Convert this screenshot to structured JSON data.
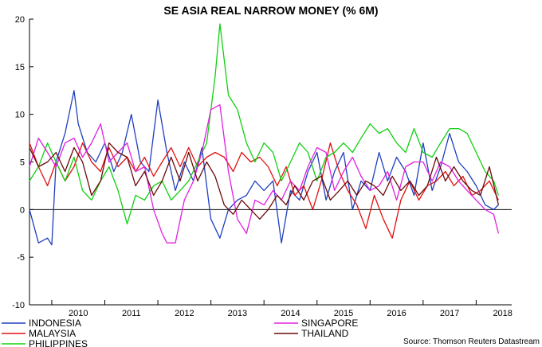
{
  "chart_data": {
    "type": "line",
    "title": "SE ASIA REAL NARROW MONEY (% 6M)",
    "source": "Source: Thomson Reuters Datastream",
    "ylim": [
      -10,
      20
    ],
    "yticks": [
      -10,
      -5,
      0,
      5,
      10,
      15,
      20
    ],
    "x_range": [
      2009.58,
      2018.67
    ],
    "xticks": [
      "2010",
      "2011",
      "2012",
      "2013",
      "2014",
      "2015",
      "2016",
      "2017",
      "2018"
    ],
    "zero_line": true,
    "grid": false,
    "legend": "bottom",
    "series": [
      {
        "name": "INDONESIA",
        "color": "#1f3fbf",
        "x": [
          2009.58,
          2009.75,
          2009.92,
          2010.0,
          2010.08,
          2010.25,
          2010.42,
          2010.5,
          2010.67,
          2010.83,
          2011.0,
          2011.17,
          2011.33,
          2011.5,
          2011.67,
          2011.83,
          2012.0,
          2012.17,
          2012.33,
          2012.5,
          2012.67,
          2012.83,
          2013.0,
          2013.17,
          2013.33,
          2013.5,
          2013.67,
          2013.83,
          2014.0,
          2014.17,
          2014.33,
          2014.5,
          2014.67,
          2014.83,
          2015.0,
          2015.17,
          2015.33,
          2015.5,
          2015.67,
          2015.83,
          2016.0,
          2016.17,
          2016.33,
          2016.5,
          2016.67,
          2016.83,
          2017.0,
          2017.17,
          2017.33,
          2017.5,
          2017.67,
          2017.83,
          2018.0,
          2018.17,
          2018.33,
          2018.42
        ],
        "y": [
          0,
          -3.5,
          -3,
          -3.7,
          5,
          8,
          12.5,
          9,
          6,
          5,
          7,
          4,
          6,
          10,
          5,
          4,
          11.5,
          6,
          2,
          5,
          3,
          6.5,
          -1,
          -3,
          0,
          1,
          1.5,
          3,
          2,
          3,
          -3.5,
          2,
          1,
          4,
          6,
          1,
          4,
          6,
          0,
          3,
          2,
          6,
          3,
          5.5,
          4,
          1.5,
          7,
          2,
          4.5,
          8,
          5,
          4,
          2.5,
          0.5,
          0,
          0.5
        ]
      },
      {
        "name": "MALAYSIA",
        "color": "#e01010",
        "x": [
          2009.58,
          2009.75,
          2009.92,
          2010.08,
          2010.25,
          2010.42,
          2010.58,
          2010.75,
          2010.92,
          2011.08,
          2011.25,
          2011.42,
          2011.58,
          2011.75,
          2011.92,
          2012.08,
          2012.25,
          2012.42,
          2012.58,
          2012.75,
          2012.92,
          2013.08,
          2013.25,
          2013.42,
          2013.58,
          2013.75,
          2013.92,
          2014.08,
          2014.25,
          2014.42,
          2014.58,
          2014.75,
          2014.92,
          2015.08,
          2015.25,
          2015.42,
          2015.58,
          2015.75,
          2015.92,
          2016.08,
          2016.25,
          2016.42,
          2016.58,
          2016.75,
          2016.92,
          2017.08,
          2017.25,
          2017.42,
          2017.58,
          2017.75,
          2017.92,
          2018.08,
          2018.25,
          2018.42
        ],
        "y": [
          7,
          4.5,
          2.5,
          5,
          3,
          4.5,
          7,
          5,
          4,
          6.5,
          4.5,
          5.5,
          4,
          5.5,
          3.5,
          5,
          6.5,
          4.5,
          6.5,
          4.5,
          5.5,
          6,
          5.5,
          4,
          6,
          5,
          5.5,
          4.5,
          2.5,
          4.5,
          1.5,
          2.5,
          0,
          3,
          7,
          4,
          2,
          0.5,
          -2,
          1.5,
          -1,
          -3,
          1,
          3,
          1,
          2.5,
          3,
          4,
          2.5,
          3.5,
          1.5,
          2,
          3,
          1
        ]
      },
      {
        "name": "PHILIPPINES",
        "color": "#10d010",
        "x": [
          2009.58,
          2009.75,
          2009.92,
          2010.08,
          2010.25,
          2010.42,
          2010.58,
          2010.75,
          2010.92,
          2011.08,
          2011.25,
          2011.42,
          2011.58,
          2011.75,
          2011.92,
          2012.08,
          2012.25,
          2012.42,
          2012.58,
          2012.75,
          2012.92,
          2013.08,
          2013.17,
          2013.33,
          2013.5,
          2013.67,
          2013.83,
          2014.0,
          2014.17,
          2014.33,
          2014.5,
          2014.67,
          2014.83,
          2015.0,
          2015.17,
          2015.33,
          2015.5,
          2015.67,
          2015.83,
          2016.0,
          2016.17,
          2016.33,
          2016.5,
          2016.67,
          2016.83,
          2017.0,
          2017.17,
          2017.33,
          2017.5,
          2017.67,
          2017.83,
          2018.0,
          2018.17,
          2018.33,
          2018.42
        ],
        "y": [
          3,
          4.5,
          7,
          5,
          3,
          5.5,
          2,
          1,
          3,
          4.5,
          2,
          -1.5,
          1.5,
          1,
          2.5,
          3,
          1,
          2,
          3,
          5,
          7,
          14,
          19.5,
          12,
          10.5,
          7,
          5,
          7,
          6,
          3,
          5,
          7,
          6,
          3,
          5.5,
          6,
          7,
          6,
          7.5,
          9,
          8,
          8.5,
          7,
          6,
          8.5,
          6,
          5.5,
          7,
          8.5,
          8.5,
          8,
          6,
          4,
          3,
          1.5
        ]
      },
      {
        "name": "SINGAPORE",
        "color": "#e020e0",
        "x": [
          2009.58,
          2009.75,
          2009.92,
          2010.08,
          2010.25,
          2010.42,
          2010.58,
          2010.75,
          2010.92,
          2011.08,
          2011.25,
          2011.42,
          2011.58,
          2011.75,
          2011.92,
          2012.08,
          2012.17,
          2012.33,
          2012.5,
          2012.67,
          2012.83,
          2013.0,
          2013.17,
          2013.33,
          2013.5,
          2013.67,
          2013.83,
          2014.0,
          2014.17,
          2014.33,
          2014.5,
          2014.67,
          2014.83,
          2015.0,
          2015.17,
          2015.33,
          2015.5,
          2015.67,
          2015.83,
          2016.0,
          2016.17,
          2016.33,
          2016.5,
          2016.67,
          2016.83,
          2017.0,
          2017.17,
          2017.33,
          2017.5,
          2017.67,
          2017.83,
          2018.0,
          2018.17,
          2018.33,
          2018.42
        ],
        "y": [
          4.5,
          7.5,
          6,
          4.5,
          7,
          7.5,
          5.5,
          7,
          9,
          5,
          6,
          7,
          4,
          4.5,
          0,
          -2.5,
          -3.5,
          -3.5,
          1,
          3,
          6,
          10.5,
          11,
          4,
          -1,
          -2.5,
          1,
          0.5,
          2,
          1,
          3,
          2,
          4.5,
          6.5,
          6,
          2,
          4,
          5.5,
          3.5,
          2,
          2.5,
          4,
          1,
          4.5,
          5,
          5,
          3,
          5,
          4.5,
          3,
          2,
          1,
          0,
          -0.5,
          -2.5
        ]
      },
      {
        "name": "THAILAND",
        "color": "#6b0a0a",
        "x": [
          2009.58,
          2009.75,
          2009.92,
          2010.08,
          2010.25,
          2010.42,
          2010.58,
          2010.75,
          2010.92,
          2011.08,
          2011.25,
          2011.42,
          2011.58,
          2011.75,
          2011.92,
          2012.08,
          2012.25,
          2012.42,
          2012.58,
          2012.75,
          2012.92,
          2013.08,
          2013.25,
          2013.42,
          2013.58,
          2013.75,
          2013.92,
          2014.08,
          2014.25,
          2014.42,
          2014.58,
          2014.75,
          2014.92,
          2015.08,
          2015.25,
          2015.42,
          2015.58,
          2015.75,
          2015.92,
          2016.08,
          2016.25,
          2016.42,
          2016.58,
          2016.75,
          2016.92,
          2017.08,
          2017.25,
          2017.42,
          2017.58,
          2017.75,
          2017.92,
          2018.08,
          2018.25,
          2018.42
        ],
        "y": [
          6.5,
          4.5,
          5,
          6,
          4,
          6.5,
          5,
          1.5,
          3,
          7,
          6,
          5.5,
          2.5,
          4,
          1.5,
          3,
          5.5,
          3,
          6,
          3,
          5,
          3.5,
          0.5,
          -0.5,
          1,
          0,
          -1,
          0,
          1.5,
          0.5,
          2.5,
          1,
          3,
          3.5,
          1,
          2,
          3,
          1.5,
          3,
          2.5,
          1.5,
          3.5,
          2,
          3,
          1.5,
          2.5,
          5.5,
          3,
          4.5,
          3,
          2,
          1.5,
          4.5,
          0.5
        ]
      }
    ]
  }
}
